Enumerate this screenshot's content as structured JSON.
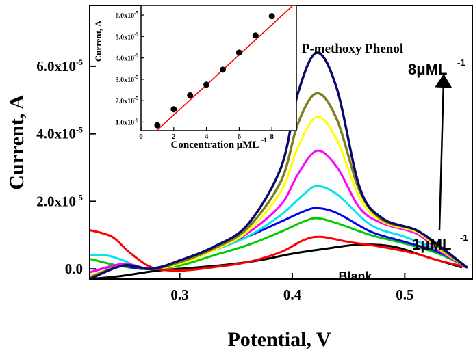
{
  "chart_data": [
    {
      "type": "line",
      "xlabel": "Potential, V",
      "ylabel": "Current, A",
      "xlim": [
        0.22,
        0.56
      ],
      "ylim": [
        -3e-06,
        7.8e-05
      ],
      "x_ticks": [
        {
          "value": 0.3,
          "label": "0.3"
        },
        {
          "value": 0.4,
          "label": "0.4"
        },
        {
          "value": 0.5,
          "label": "0.5"
        }
      ],
      "y_ticks": [
        {
          "value": 0,
          "base": "0.0",
          "exp": ""
        },
        {
          "value": 2e-05,
          "base": "2.0x10",
          "exp": "-5"
        },
        {
          "value": 4e-05,
          "base": "4.0x10",
          "exp": "-5"
        },
        {
          "value": 6e-05,
          "base": "6.0x10",
          "exp": "-5"
        }
      ],
      "grid": false,
      "annotations": {
        "compound": "P-methoxy Phenol",
        "top_conc": "8μML",
        "bottom_conc": "1μML",
        "conc_exp": "-1",
        "blank": "Blank"
      },
      "series": [
        {
          "color": "#000000",
          "width": 3,
          "x": [
            0.22,
            0.25,
            0.28,
            0.31,
            0.34,
            0.37,
            0.4,
            0.43,
            0.46,
            0.49,
            0.52,
            0.55
          ],
          "y": [
            -3e-06,
            -2e-06,
            -5e-07,
            3e-07,
            1.2e-06,
            2.5e-06,
            4.5e-06,
            6e-06,
            7.2e-06,
            6.6e-06,
            3.5e-06,
            5e-07
          ]
        },
        {
          "color": "#ff0000",
          "width": 3,
          "x": [
            0.22,
            0.24,
            0.255,
            0.275,
            0.3,
            0.33,
            0.36,
            0.39,
            0.41,
            0.425,
            0.45,
            0.48,
            0.51,
            0.53,
            0.555
          ],
          "y": [
            1.15e-05,
            9.5e-06,
            5e-06,
            5e-07,
            -5e-07,
            5e-07,
            2e-06,
            5e-06,
            8.5e-06,
            9.5e-06,
            8e-06,
            6.5e-06,
            4.5e-06,
            2.5e-06,
            5e-07
          ]
        },
        {
          "color": "#00cc00",
          "width": 3,
          "x": [
            0.22,
            0.245,
            0.27,
            0.3,
            0.33,
            0.36,
            0.39,
            0.41,
            0.422,
            0.44,
            0.47,
            0.5,
            0.53,
            0.555
          ],
          "y": [
            3e-06,
            1e-06,
            0.0,
            1e-06,
            4e-06,
            7e-06,
            1.1e-05,
            1.4e-05,
            1.5e-05,
            1.35e-05,
            1e-05,
            7.5e-06,
            4.5e-06,
            5e-07
          ]
        },
        {
          "color": "#0000ee",
          "width": 3,
          "x": [
            0.22,
            0.245,
            0.27,
            0.3,
            0.33,
            0.36,
            0.39,
            0.41,
            0.422,
            0.44,
            0.47,
            0.5,
            0.53,
            0.555
          ],
          "y": [
            -1e-06,
            1e-06,
            0.0,
            2e-06,
            5.5e-06,
            9.5e-06,
            1.4e-05,
            1.7e-05,
            1.8e-05,
            1.65e-05,
            1.1e-05,
            8e-06,
            5e-06,
            5e-07
          ]
        },
        {
          "color": "#00e5ee",
          "width": 3,
          "x": [
            0.22,
            0.235,
            0.25,
            0.27,
            0.3,
            0.33,
            0.36,
            0.39,
            0.41,
            0.422,
            0.44,
            0.47,
            0.5,
            0.53,
            0.555
          ],
          "y": [
            4e-06,
            4e-06,
            2.5e-06,
            0.0,
            2e-06,
            5.5e-06,
            9.5e-06,
            1.6e-05,
            2.2e-05,
            2.45e-05,
            2.2e-05,
            1.3e-05,
            9.5e-06,
            5.5e-06,
            5e-07
          ]
        },
        {
          "color": "#ff00ff",
          "width": 3,
          "x": [
            0.22,
            0.25,
            0.275,
            0.3,
            0.33,
            0.36,
            0.39,
            0.405,
            0.422,
            0.44,
            0.46,
            0.48,
            0.51,
            0.53,
            0.555
          ],
          "y": [
            -1e-06,
            1.5e-06,
            0.0,
            2e-06,
            5.5e-06,
            1.05e-05,
            1.9e-05,
            2.8e-05,
            3.5e-05,
            3e-05,
            1.8e-05,
            1.35e-05,
            1.05e-05,
            5.5e-06,
            5e-07
          ]
        },
        {
          "color": "#ffff00",
          "width": 3,
          "x": [
            0.22,
            0.25,
            0.275,
            0.3,
            0.33,
            0.36,
            0.39,
            0.405,
            0.422,
            0.44,
            0.46,
            0.48,
            0.51,
            0.53,
            0.555
          ],
          "y": [
            -2e-06,
            1e-06,
            0.0,
            1.5e-06,
            5.5e-06,
            1.1e-05,
            2.3e-05,
            3.6e-05,
            4.5e-05,
            3.8e-05,
            2.1e-05,
            1.4e-05,
            1.1e-05,
            6e-06,
            5e-07
          ]
        },
        {
          "color": "#7f7f20",
          "width": 3.5,
          "x": [
            0.22,
            0.25,
            0.275,
            0.3,
            0.33,
            0.36,
            0.39,
            0.405,
            0.422,
            0.44,
            0.46,
            0.48,
            0.51,
            0.53,
            0.555
          ],
          "y": [
            -2.5e-06,
            1e-06,
            0.0,
            2e-06,
            6e-06,
            1.2e-05,
            2.6e-05,
            4.3e-05,
            5.2e-05,
            4.4e-05,
            2.3e-05,
            1.45e-05,
            1.15e-05,
            6.5e-06,
            5e-07
          ]
        },
        {
          "color": "#0a0a6e",
          "width": 3.5,
          "x": [
            0.22,
            0.25,
            0.275,
            0.3,
            0.33,
            0.36,
            0.39,
            0.405,
            0.422,
            0.44,
            0.46,
            0.48,
            0.51,
            0.53,
            0.555
          ],
          "y": [
            -3e-06,
            1e-06,
            0.0,
            2.5e-06,
            6.5e-06,
            1.3e-05,
            3e-05,
            5.2e-05,
            6.4e-05,
            5.3e-05,
            2.4e-05,
            1.5e-05,
            1.15e-05,
            7e-06,
            5e-07
          ]
        }
      ]
    },
    {
      "type": "scatter",
      "xlabel": "Concentration μML",
      "xlabel_exp": "-1",
      "ylabel": "Current, A",
      "xlim": [
        0,
        9.5
      ],
      "ylim": [
        6e-06,
        6.45e-05
      ],
      "x_ticks": [
        0,
        2,
        4,
        6,
        8
      ],
      "y_ticks": [
        {
          "value": 1e-05,
          "base": "1.0x10",
          "exp": "-5"
        },
        {
          "value": 2e-05,
          "base": "2.0x10",
          "exp": "-5"
        },
        {
          "value": 3e-05,
          "base": "3.0x10",
          "exp": "-5"
        },
        {
          "value": 4e-05,
          "base": "4.0x10",
          "exp": "-5"
        },
        {
          "value": 5e-05,
          "base": "5.0x10",
          "exp": "-5"
        },
        {
          "value": 6e-05,
          "base": "6.0x10",
          "exp": "-5"
        }
      ],
      "points": {
        "x": [
          1,
          2,
          3,
          4,
          5,
          6,
          7,
          8
        ],
        "y": [
          8.5e-06,
          1.6e-05,
          2.25e-05,
          2.75e-05,
          3.45e-05,
          4.25e-05,
          5.05e-05,
          5.95e-05
        ]
      },
      "fit_line": {
        "x": [
          0.5,
          9.5
        ],
        "y": [
          2.8e-06,
          6.6e-05
        ],
        "color": "#ff0000"
      },
      "marker_color": "#000000"
    }
  ]
}
